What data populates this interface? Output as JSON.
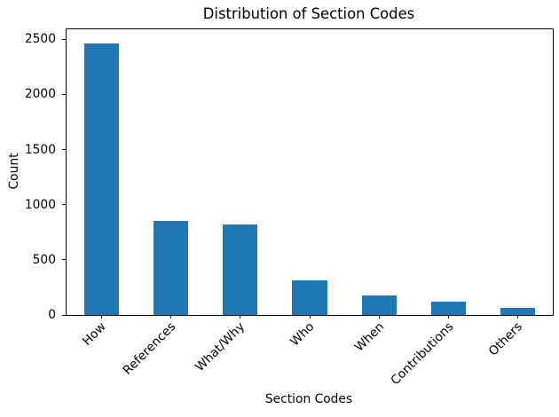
{
  "chart_data": {
    "type": "bar",
    "title": "Distribution of Section Codes",
    "xlabel": "Section Codes",
    "ylabel": "Count",
    "categories": [
      "How",
      "References",
      "What/Why",
      "Who",
      "When",
      "Contributions",
      "Others"
    ],
    "values": [
      2465,
      855,
      820,
      315,
      180,
      120,
      65
    ],
    "yticks": [
      0,
      500,
      1000,
      1500,
      2000,
      2500
    ],
    "ylim": [
      0,
      2590
    ],
    "bar_color": "#1f77b4",
    "bar_width_fraction": 0.5,
    "x_tick_rotation": 45,
    "grid": false,
    "legend": null,
    "background": "#ffffff"
  }
}
